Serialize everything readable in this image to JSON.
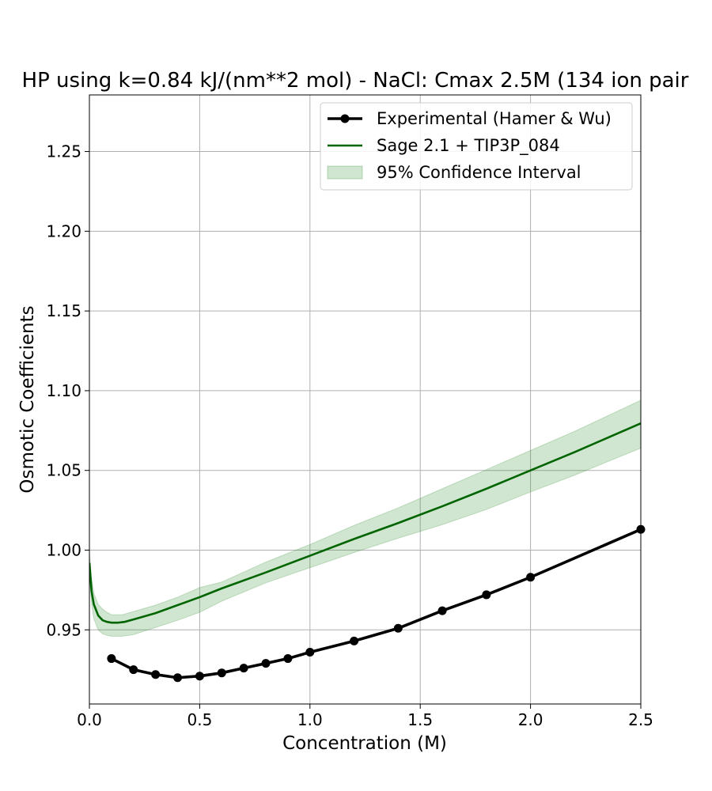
{
  "chart_data": {
    "type": "line",
    "title": "HP using k=0.84 kJ/(nm**2 mol) - NaCl: Cmax 2.5M (134 ion pair",
    "xlabel": "Concentration (M)",
    "ylabel": "Osmotic Coefficients",
    "xlim": [
      0.0,
      2.5
    ],
    "ylim": [
      0.9035,
      1.2855
    ],
    "xticks": [
      0.0,
      0.5,
      1.0,
      1.5,
      2.0,
      2.5
    ],
    "xtick_labels": [
      "0.0",
      "0.5",
      "1.0",
      "1.5",
      "2.0",
      "2.5"
    ],
    "yticks": [
      0.95,
      1.0,
      1.05,
      1.1,
      1.15,
      1.2,
      1.25
    ],
    "ytick_labels": [
      "0.95",
      "1.00",
      "1.05",
      "1.10",
      "1.15",
      "1.20",
      "1.25"
    ],
    "grid": true,
    "legend_position": "top-right",
    "series": [
      {
        "name": "Experimental (Hamer & Wu)",
        "kind": "line-markers",
        "color": "#000000",
        "x": [
          0.1,
          0.2,
          0.3,
          0.4,
          0.5,
          0.6,
          0.7,
          0.8,
          0.9,
          1.0,
          1.2,
          1.4,
          1.6,
          1.8,
          2.0,
          2.5
        ],
        "y": [
          0.932,
          0.925,
          0.922,
          0.92,
          0.921,
          0.923,
          0.926,
          0.929,
          0.932,
          0.936,
          0.943,
          0.951,
          0.962,
          0.972,
          0.983,
          1.013
        ]
      },
      {
        "name": "Sage 2.1 + TIP3P_084",
        "kind": "line",
        "color": "#006400",
        "x": [
          0.0,
          0.01,
          0.02,
          0.04,
          0.06,
          0.08,
          0.1,
          0.13,
          0.16,
          0.2,
          0.3,
          0.4,
          0.5,
          0.6,
          0.8,
          1.0,
          1.2,
          1.4,
          1.6,
          1.8,
          2.0,
          2.2,
          2.5
        ],
        "y": [
          0.992,
          0.974,
          0.966,
          0.959,
          0.956,
          0.955,
          0.9545,
          0.9545,
          0.955,
          0.9565,
          0.9605,
          0.9655,
          0.9705,
          0.976,
          0.986,
          0.9965,
          1.007,
          1.017,
          1.0275,
          1.0385,
          1.05,
          1.0615,
          1.0795
        ]
      },
      {
        "name": "95% Confidence Interval",
        "kind": "band",
        "color": "#2e8b2e",
        "x": [
          0.0,
          0.01,
          0.02,
          0.04,
          0.06,
          0.08,
          0.1,
          0.15,
          0.2,
          0.3,
          0.4,
          0.5,
          0.6,
          0.8,
          1.0,
          1.2,
          1.4,
          1.6,
          1.8,
          2.0,
          2.2,
          2.5
        ],
        "lower": [
          0.985,
          0.966,
          0.957,
          0.95,
          0.9475,
          0.9465,
          0.946,
          0.946,
          0.947,
          0.9515,
          0.956,
          0.961,
          0.968,
          0.9795,
          0.989,
          0.9985,
          1.0075,
          1.016,
          1.0255,
          1.0365,
          1.047,
          1.064
        ],
        "upper": [
          0.999,
          0.982,
          0.973,
          0.966,
          0.963,
          0.961,
          0.9595,
          0.9595,
          0.9615,
          0.9655,
          0.9705,
          0.9765,
          0.98,
          0.9925,
          1.0035,
          1.0155,
          1.0265,
          1.0385,
          1.0505,
          1.0625,
          1.0745,
          1.094
        ]
      }
    ],
    "legend_order": [
      0,
      1,
      2
    ]
  }
}
